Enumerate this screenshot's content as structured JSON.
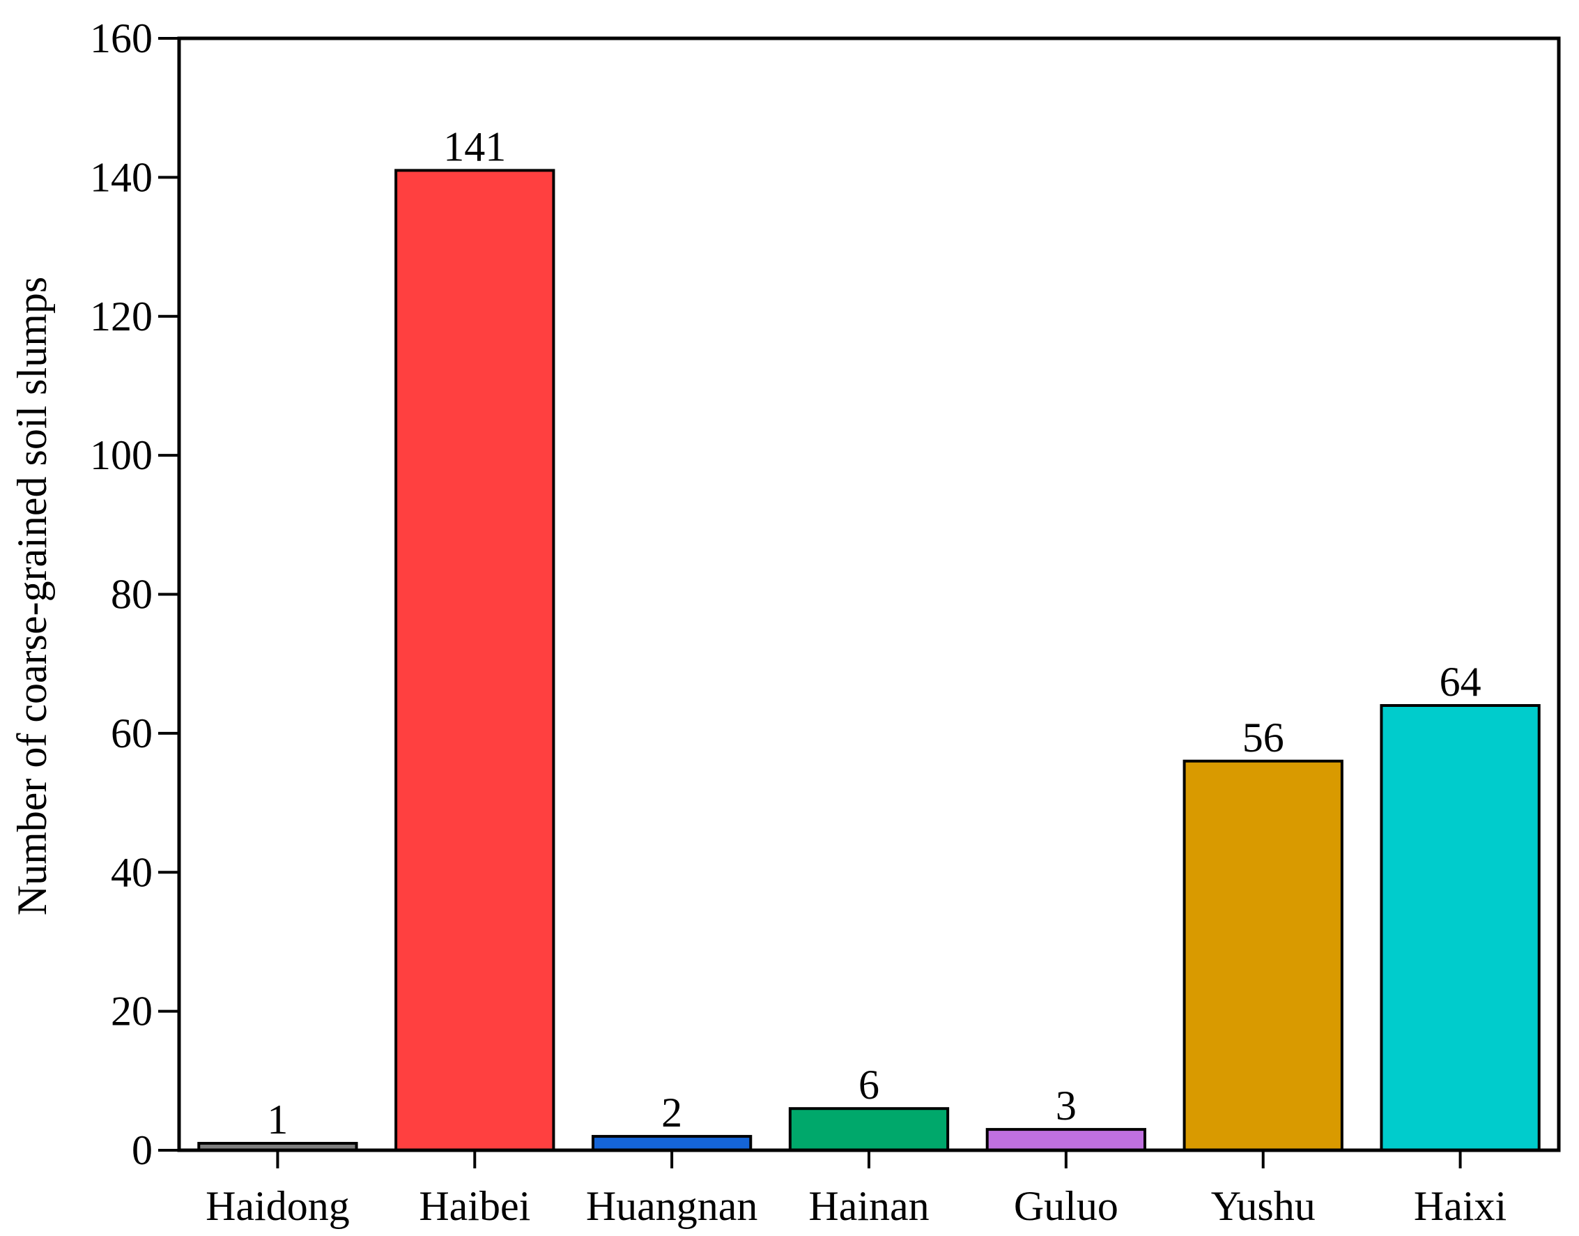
{
  "chart_data": {
    "type": "bar",
    "y_label": "Number of coarse-grained soil slumps",
    "categories": [
      "Haidong",
      "Haibei",
      "Huangnan",
      "Hainan",
      "Guluo",
      "Yushu",
      "Haixi"
    ],
    "values": [
      1,
      141,
      2,
      6,
      3,
      56,
      64
    ],
    "colors": [
      "#808080",
      "#ff4040",
      "#1565d8",
      "#00a86b",
      "#c070e0",
      "#d99a00",
      "#00cccc"
    ],
    "ylim": [
      0,
      160
    ],
    "yticks": [
      0,
      20,
      40,
      60,
      80,
      100,
      120,
      140,
      160
    ],
    "grid": false,
    "value_labels_shown": true
  }
}
